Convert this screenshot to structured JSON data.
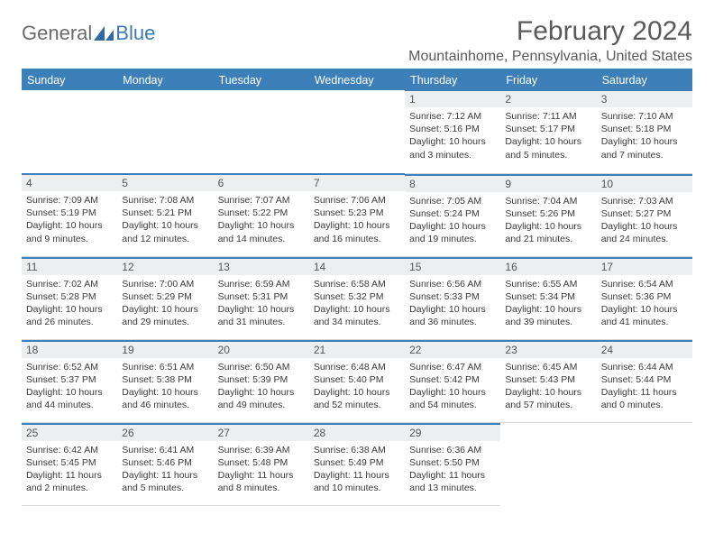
{
  "logo": {
    "part1": "General",
    "part2": "Blue"
  },
  "header": {
    "month_title": "February 2024",
    "location": "Mountainhome, Pennsylvania, United States"
  },
  "colors": {
    "header_bg": "#3c7fb9",
    "header_text": "#ffffff",
    "daynum_bg": "#eceef0",
    "text": "#3a3a3a",
    "logo_gray": "#6b6b6b",
    "logo_blue": "#3a7ab8"
  },
  "weekdays": [
    "Sunday",
    "Monday",
    "Tuesday",
    "Wednesday",
    "Thursday",
    "Friday",
    "Saturday"
  ],
  "layout": {
    "first_weekday_index": 4,
    "days_in_month": 29
  },
  "days": {
    "1": {
      "sunrise": "7:12 AM",
      "sunset": "5:16 PM",
      "daylight": "10 hours and 3 minutes."
    },
    "2": {
      "sunrise": "7:11 AM",
      "sunset": "5:17 PM",
      "daylight": "10 hours and 5 minutes."
    },
    "3": {
      "sunrise": "7:10 AM",
      "sunset": "5:18 PM",
      "daylight": "10 hours and 7 minutes."
    },
    "4": {
      "sunrise": "7:09 AM",
      "sunset": "5:19 PM",
      "daylight": "10 hours and 9 minutes."
    },
    "5": {
      "sunrise": "7:08 AM",
      "sunset": "5:21 PM",
      "daylight": "10 hours and 12 minutes."
    },
    "6": {
      "sunrise": "7:07 AM",
      "sunset": "5:22 PM",
      "daylight": "10 hours and 14 minutes."
    },
    "7": {
      "sunrise": "7:06 AM",
      "sunset": "5:23 PM",
      "daylight": "10 hours and 16 minutes."
    },
    "8": {
      "sunrise": "7:05 AM",
      "sunset": "5:24 PM",
      "daylight": "10 hours and 19 minutes."
    },
    "9": {
      "sunrise": "7:04 AM",
      "sunset": "5:26 PM",
      "daylight": "10 hours and 21 minutes."
    },
    "10": {
      "sunrise": "7:03 AM",
      "sunset": "5:27 PM",
      "daylight": "10 hours and 24 minutes."
    },
    "11": {
      "sunrise": "7:02 AM",
      "sunset": "5:28 PM",
      "daylight": "10 hours and 26 minutes."
    },
    "12": {
      "sunrise": "7:00 AM",
      "sunset": "5:29 PM",
      "daylight": "10 hours and 29 minutes."
    },
    "13": {
      "sunrise": "6:59 AM",
      "sunset": "5:31 PM",
      "daylight": "10 hours and 31 minutes."
    },
    "14": {
      "sunrise": "6:58 AM",
      "sunset": "5:32 PM",
      "daylight": "10 hours and 34 minutes."
    },
    "15": {
      "sunrise": "6:56 AM",
      "sunset": "5:33 PM",
      "daylight": "10 hours and 36 minutes."
    },
    "16": {
      "sunrise": "6:55 AM",
      "sunset": "5:34 PM",
      "daylight": "10 hours and 39 minutes."
    },
    "17": {
      "sunrise": "6:54 AM",
      "sunset": "5:36 PM",
      "daylight": "10 hours and 41 minutes."
    },
    "18": {
      "sunrise": "6:52 AM",
      "sunset": "5:37 PM",
      "daylight": "10 hours and 44 minutes."
    },
    "19": {
      "sunrise": "6:51 AM",
      "sunset": "5:38 PM",
      "daylight": "10 hours and 46 minutes."
    },
    "20": {
      "sunrise": "6:50 AM",
      "sunset": "5:39 PM",
      "daylight": "10 hours and 49 minutes."
    },
    "21": {
      "sunrise": "6:48 AM",
      "sunset": "5:40 PM",
      "daylight": "10 hours and 52 minutes."
    },
    "22": {
      "sunrise": "6:47 AM",
      "sunset": "5:42 PM",
      "daylight": "10 hours and 54 minutes."
    },
    "23": {
      "sunrise": "6:45 AM",
      "sunset": "5:43 PM",
      "daylight": "10 hours and 57 minutes."
    },
    "24": {
      "sunrise": "6:44 AM",
      "sunset": "5:44 PM",
      "daylight": "11 hours and 0 minutes."
    },
    "25": {
      "sunrise": "6:42 AM",
      "sunset": "5:45 PM",
      "daylight": "11 hours and 2 minutes."
    },
    "26": {
      "sunrise": "6:41 AM",
      "sunset": "5:46 PM",
      "daylight": "11 hours and 5 minutes."
    },
    "27": {
      "sunrise": "6:39 AM",
      "sunset": "5:48 PM",
      "daylight": "11 hours and 8 minutes."
    },
    "28": {
      "sunrise": "6:38 AM",
      "sunset": "5:49 PM",
      "daylight": "11 hours and 10 minutes."
    },
    "29": {
      "sunrise": "6:36 AM",
      "sunset": "5:50 PM",
      "daylight": "11 hours and 13 minutes."
    }
  },
  "labels": {
    "sunrise": "Sunrise:",
    "sunset": "Sunset:",
    "daylight": "Daylight:"
  }
}
